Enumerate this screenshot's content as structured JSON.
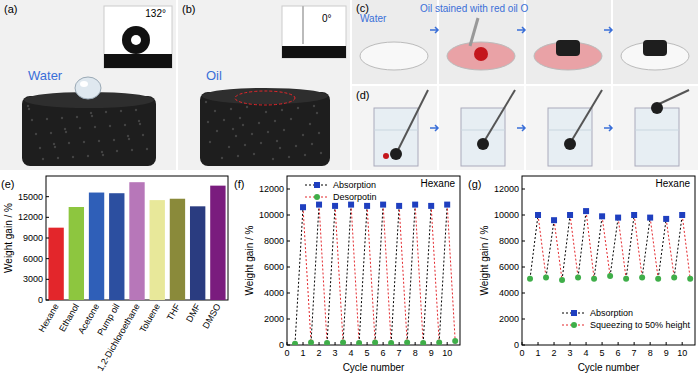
{
  "photo_panels": [
    {
      "panel_label": "(a)",
      "liquid": "Water",
      "contact_angle": "132°"
    },
    {
      "panel_label": "(b)",
      "liquid": "Oil",
      "contact_angle": "0°"
    },
    {
      "panel_label": "(c)",
      "texts": [
        "Water",
        "Oil stained with red oil O"
      ]
    },
    {
      "panel_label": "(d)"
    }
  ],
  "chart_data": [
    {
      "type": "bar",
      "panel_label": "(e)",
      "y_label": "Weight gain / %",
      "categories": [
        "Hexane",
        "Ethanol",
        "Acetone",
        "Pump oil",
        "1,2-Dichloroethane",
        "Toluene",
        "THF",
        "DMF",
        "DMSO"
      ],
      "values": [
        10500,
        13500,
        15600,
        15500,
        17100,
        14500,
        14700,
        13600,
        16600
      ],
      "colors": [
        "#e3262b",
        "#8dc63f",
        "#2f5fb8",
        "#2c4fa0",
        "#b777b9",
        "#e8e89a",
        "#8a8a3a",
        "#2a3c80",
        "#7a1c7e"
      ],
      "ylim": [
        0,
        18000
      ],
      "yticks": [
        0,
        3000,
        6000,
        9000,
        12000,
        15000
      ]
    },
    {
      "type": "line",
      "panel_label": "(f)",
      "annotation": "Hexane",
      "x_label": "Cycle number",
      "y_label": "Weight gain / %",
      "xlim": [
        0,
        10.8
      ],
      "xticks": [
        0,
        1,
        2,
        3,
        4,
        5,
        6,
        7,
        8,
        9,
        10
      ],
      "ylim": [
        0,
        13000
      ],
      "yticks": [
        0,
        2000,
        4000,
        6000,
        8000,
        10000,
        12000
      ],
      "legend": "top",
      "series": [
        {
          "name": "Absorption",
          "color": "#000000",
          "line_style": "dotted",
          "marker": "square",
          "x": [
            1,
            2,
            3,
            4,
            5,
            6,
            7,
            8,
            9,
            10
          ],
          "values": [
            10600,
            10800,
            10700,
            10800,
            10700,
            10800,
            10700,
            10800,
            10700,
            10800
          ]
        },
        {
          "name": "Desorpotin",
          "color": "#e3262b",
          "line_style": "dotted",
          "marker": "circle",
          "x": [
            0.5,
            1.5,
            2.5,
            3.5,
            4.5,
            5.5,
            6.5,
            7.5,
            8.5,
            9.5,
            10.5
          ],
          "values": [
            100,
            200,
            150,
            200,
            150,
            200,
            150,
            200,
            150,
            200,
            300
          ]
        }
      ]
    },
    {
      "type": "line",
      "panel_label": "(g)",
      "annotation": "Hexane",
      "x_label": "Cycle number",
      "y_label": "Weight gain / %",
      "xlim": [
        0,
        10.8
      ],
      "xticks": [
        0,
        1,
        2,
        3,
        4,
        5,
        6,
        7,
        8,
        9,
        10
      ],
      "ylim": [
        0,
        13000
      ],
      "yticks": [
        0,
        2000,
        4000,
        6000,
        8000,
        10000,
        12000
      ],
      "legend": "bottom",
      "series": [
        {
          "name": "Absorption",
          "color": "#000000",
          "line_style": "dotted",
          "marker": "square",
          "x": [
            1,
            2,
            3,
            4,
            5,
            6,
            7,
            8,
            9,
            10
          ],
          "values": [
            10000,
            9600,
            10000,
            10300,
            9900,
            9800,
            10000,
            9800,
            9700,
            10000
          ]
        },
        {
          "name": "Squeezing to 50% height",
          "color": "#e3262b",
          "line_style": "dotted",
          "marker": "circle",
          "x": [
            0.5,
            1.5,
            2.5,
            3.5,
            4.5,
            5.5,
            6.5,
            7.5,
            8.5,
            9.5,
            10.5
          ],
          "values": [
            5100,
            5200,
            5000,
            5200,
            5100,
            5300,
            5100,
            5200,
            5100,
            5200,
            5100
          ]
        }
      ]
    }
  ]
}
